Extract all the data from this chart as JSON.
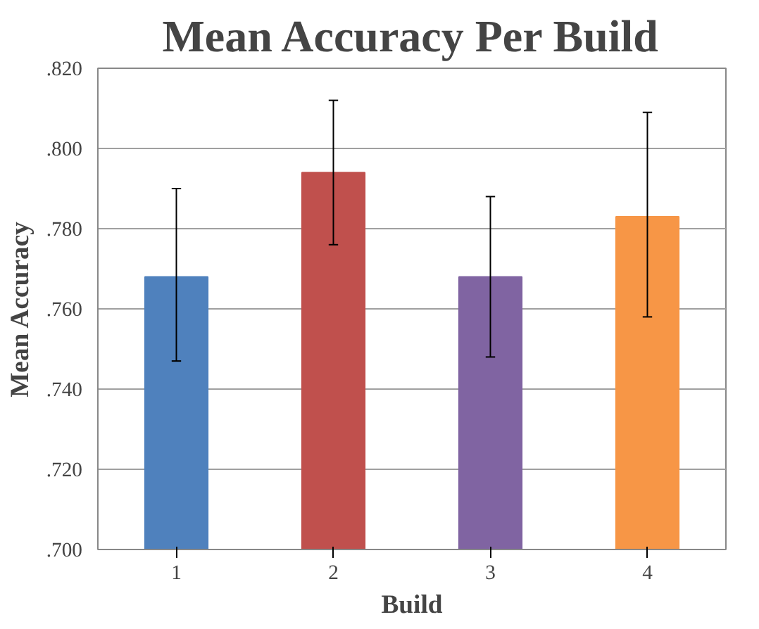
{
  "chart_data": {
    "type": "bar",
    "title": "Mean Accuracy Per Build",
    "xlabel": "Build",
    "ylabel": "Mean Accuracy",
    "categories": [
      "1",
      "2",
      "3",
      "4"
    ],
    "values": [
      0.768,
      0.794,
      0.768,
      0.783
    ],
    "colors": [
      "#4f81bd",
      "#c0504d",
      "#8064a2",
      "#f79646"
    ],
    "errors": [
      [
        0.747,
        0.79
      ],
      [
        0.776,
        0.812
      ],
      [
        0.748,
        0.788
      ],
      [
        0.758,
        0.809
      ]
    ],
    "ylim": [
      0.7,
      0.82
    ],
    "yticks": [
      {
        "value": 0.7,
        "label": ".700"
      },
      {
        "value": 0.72,
        "label": ".720"
      },
      {
        "value": 0.74,
        "label": ".740"
      },
      {
        "value": 0.76,
        "label": ".760"
      },
      {
        "value": 0.78,
        "label": ".780"
      },
      {
        "value": 0.8,
        "label": ".800"
      },
      {
        "value": 0.82,
        "label": ".820"
      }
    ],
    "grid": "y"
  }
}
